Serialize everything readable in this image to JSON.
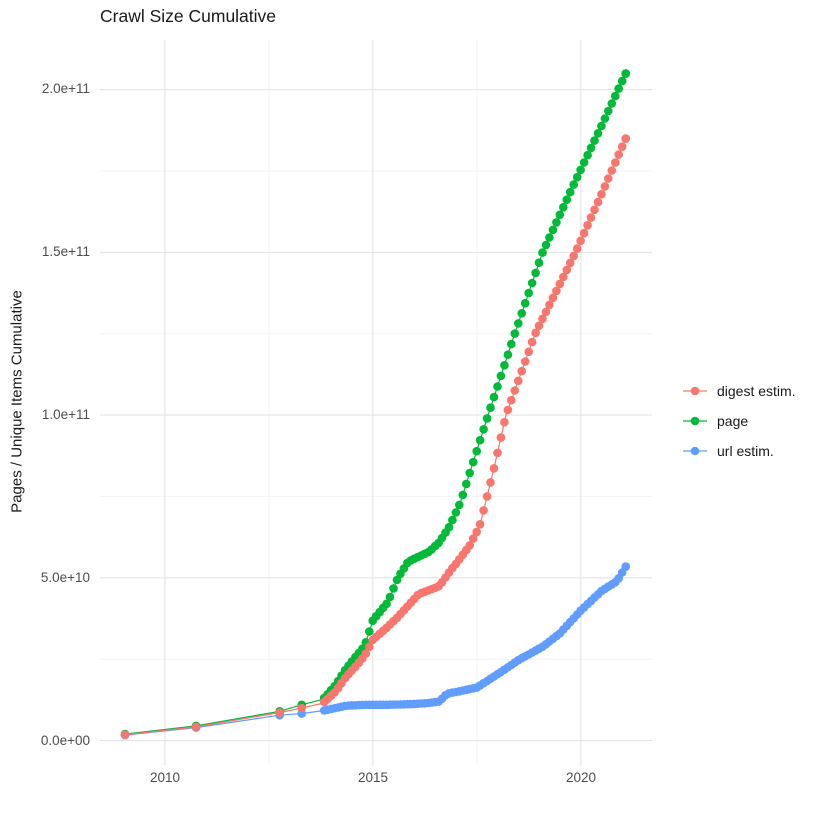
{
  "title": "Crawl Size Cumulative",
  "chart_data": {
    "type": "scatter",
    "title": "Crawl Size Cumulative",
    "xlabel": "",
    "ylabel": "Pages / Unique Items Cumulative",
    "legend_position": "right",
    "grid": true,
    "x_axis": {
      "domain": [
        2008.44,
        2021.71
      ],
      "ticks": [
        {
          "label": "2010",
          "value": 2010
        },
        {
          "label": "2015",
          "value": 2015
        },
        {
          "label": "2020",
          "value": 2020
        }
      ],
      "minor": [
        2012.5,
        2017.5
      ]
    },
    "y_axis": {
      "domain": [
        -7500000000.0,
        215250000000.0
      ],
      "ticks": [
        {
          "label": "0.0e+00",
          "value": 0
        },
        {
          "label": "5.0e+10",
          "value": 50000000000.0
        },
        {
          "label": "1.0e+11",
          "value": 100000000000.0
        },
        {
          "label": "1.5e+11",
          "value": 150000000000.0
        },
        {
          "label": "2.0e+11",
          "value": 200000000000.0
        }
      ],
      "minor": [
        25000000000.0,
        75000000000.0,
        125000000000.0,
        175000000000.0
      ]
    },
    "dense_points_from": 2013.75,
    "dot_interval_years": 0.0833,
    "series": [
      {
        "name": "digest estim.",
        "color": "#F8766D",
        "points": [
          [
            2009.04,
            1800000000.0
          ],
          [
            2010.75,
            4200000000.0
          ],
          [
            2012.76,
            8600000000.0
          ],
          [
            2013.29,
            10000000000.0
          ],
          [
            2013.8,
            11500000000.0
          ],
          [
            2014.1,
            15000000000.0
          ],
          [
            2014.35,
            19500000000.0
          ],
          [
            2014.6,
            23000000000.0
          ],
          [
            2014.8,
            26000000000.0
          ],
          [
            2015.0,
            31000000000.0
          ],
          [
            2015.36,
            35000000000.0
          ],
          [
            2015.6,
            38000000000.0
          ],
          [
            2015.85,
            41500000000.0
          ],
          [
            2016.1,
            45000000000.0
          ],
          [
            2016.35,
            46200000000.0
          ],
          [
            2016.6,
            47500000000.0
          ],
          [
            2016.85,
            52000000000.0
          ],
          [
            2017.04,
            55000000000.0
          ],
          [
            2017.33,
            60000000000.0
          ],
          [
            2017.57,
            66000000000.0
          ],
          [
            2017.9,
            83000000000.0
          ],
          [
            2018.2,
            100000000000.0
          ],
          [
            2018.9,
            125000000000.0
          ],
          [
            2019.87,
            150000000000.0
          ],
          [
            2020.5,
            168000000000.0
          ],
          [
            2021.08,
            185000000000.0
          ]
        ]
      },
      {
        "name": "page",
        "color": "#00BA38",
        "points": [
          [
            2009.04,
            2000000000.0
          ],
          [
            2010.75,
            4500000000.0
          ],
          [
            2012.76,
            9000000000.0
          ],
          [
            2013.29,
            11000000000.0
          ],
          [
            2013.8,
            12700000000.0
          ],
          [
            2014.1,
            17000000000.0
          ],
          [
            2014.35,
            22000000000.0
          ],
          [
            2014.6,
            26000000000.0
          ],
          [
            2014.8,
            29000000000.0
          ],
          [
            2015.0,
            37000000000.0
          ],
          [
            2015.36,
            42500000000.0
          ],
          [
            2015.6,
            50000000000.0
          ],
          [
            2015.85,
            55000000000.0
          ],
          [
            2016.1,
            56500000000.0
          ],
          [
            2016.35,
            58000000000.0
          ],
          [
            2016.6,
            61000000000.0
          ],
          [
            2016.85,
            66000000000.0
          ],
          [
            2017.1,
            73000000000.0
          ],
          [
            2017.77,
            100000000000.0
          ],
          [
            2018.41,
            125000000000.0
          ],
          [
            2019.08,
            150000000000.0
          ],
          [
            2019.87,
            172000000000.0
          ],
          [
            2020.5,
            189000000000.0
          ],
          [
            2021.08,
            205000000000.0
          ]
        ]
      },
      {
        "name": "url estim.",
        "color": "#619CFF",
        "points": [
          [
            2009.04,
            1700000000.0
          ],
          [
            2010.75,
            4000000000.0
          ],
          [
            2012.76,
            7800000000.0
          ],
          [
            2013.29,
            8300000000.0
          ],
          [
            2013.8,
            9200000000.0
          ],
          [
            2014.1,
            10000000000.0
          ],
          [
            2014.35,
            10700000000.0
          ],
          [
            2014.8,
            11000000000.0
          ],
          [
            2015.3,
            11000000000.0
          ],
          [
            2015.9,
            11200000000.0
          ],
          [
            2016.3,
            11500000000.0
          ],
          [
            2016.6,
            12000000000.0
          ],
          [
            2016.78,
            14400000000.0
          ],
          [
            2017.1,
            15200000000.0
          ],
          [
            2017.5,
            16300000000.0
          ],
          [
            2018.13,
            21500000000.0
          ],
          [
            2018.53,
            25000000000.0
          ],
          [
            2018.75,
            26500000000.0
          ],
          [
            2019.1,
            29000000000.0
          ],
          [
            2019.5,
            33000000000.0
          ],
          [
            2020.0,
            40000000000.0
          ],
          [
            2020.5,
            46000000000.0
          ],
          [
            2020.87,
            49000000000.0
          ],
          [
            2021.08,
            53500000000.0
          ]
        ]
      }
    ],
    "style": {
      "grid_major_color": "#e3e3e3",
      "grid_minor_color": "#f0f0f0",
      "background": "#ffffff"
    }
  }
}
